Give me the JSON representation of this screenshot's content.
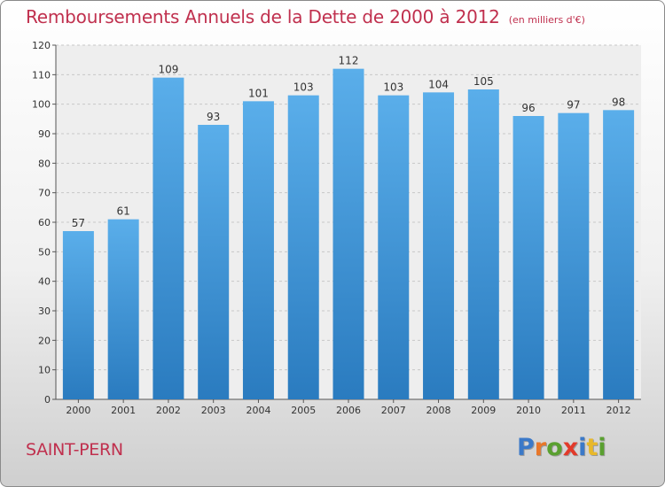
{
  "header": {
    "title": "Remboursements Annuels de la Dette de 2000 à 2012",
    "subtitle": "(en milliers d'€)"
  },
  "footer": {
    "commune": "SAINT-PERN",
    "logo_text": "Proxiti"
  },
  "colors": {
    "bar_light": "#5aaeea",
    "bar_dark": "#2a7bbf",
    "title": "#c0304e",
    "logo_letters": [
      "#3b79c8",
      "#e8772a",
      "#5aa030",
      "#e23a2a",
      "#3b79c8",
      "#e8b82a",
      "#5aa030"
    ]
  },
  "chart_data": {
    "type": "bar",
    "categories": [
      "2000",
      "2001",
      "2002",
      "2003",
      "2004",
      "2005",
      "2006",
      "2007",
      "2008",
      "2009",
      "2010",
      "2011",
      "2012"
    ],
    "values": [
      57,
      61,
      109,
      93,
      101,
      103,
      112,
      103,
      104,
      105,
      96,
      97,
      98
    ],
    "ylim": [
      0,
      120
    ],
    "yticks": [
      0,
      10,
      20,
      30,
      40,
      50,
      60,
      70,
      80,
      90,
      100,
      110,
      120
    ],
    "grid": true,
    "data_labels": true,
    "xlabel": "",
    "ylabel": ""
  }
}
